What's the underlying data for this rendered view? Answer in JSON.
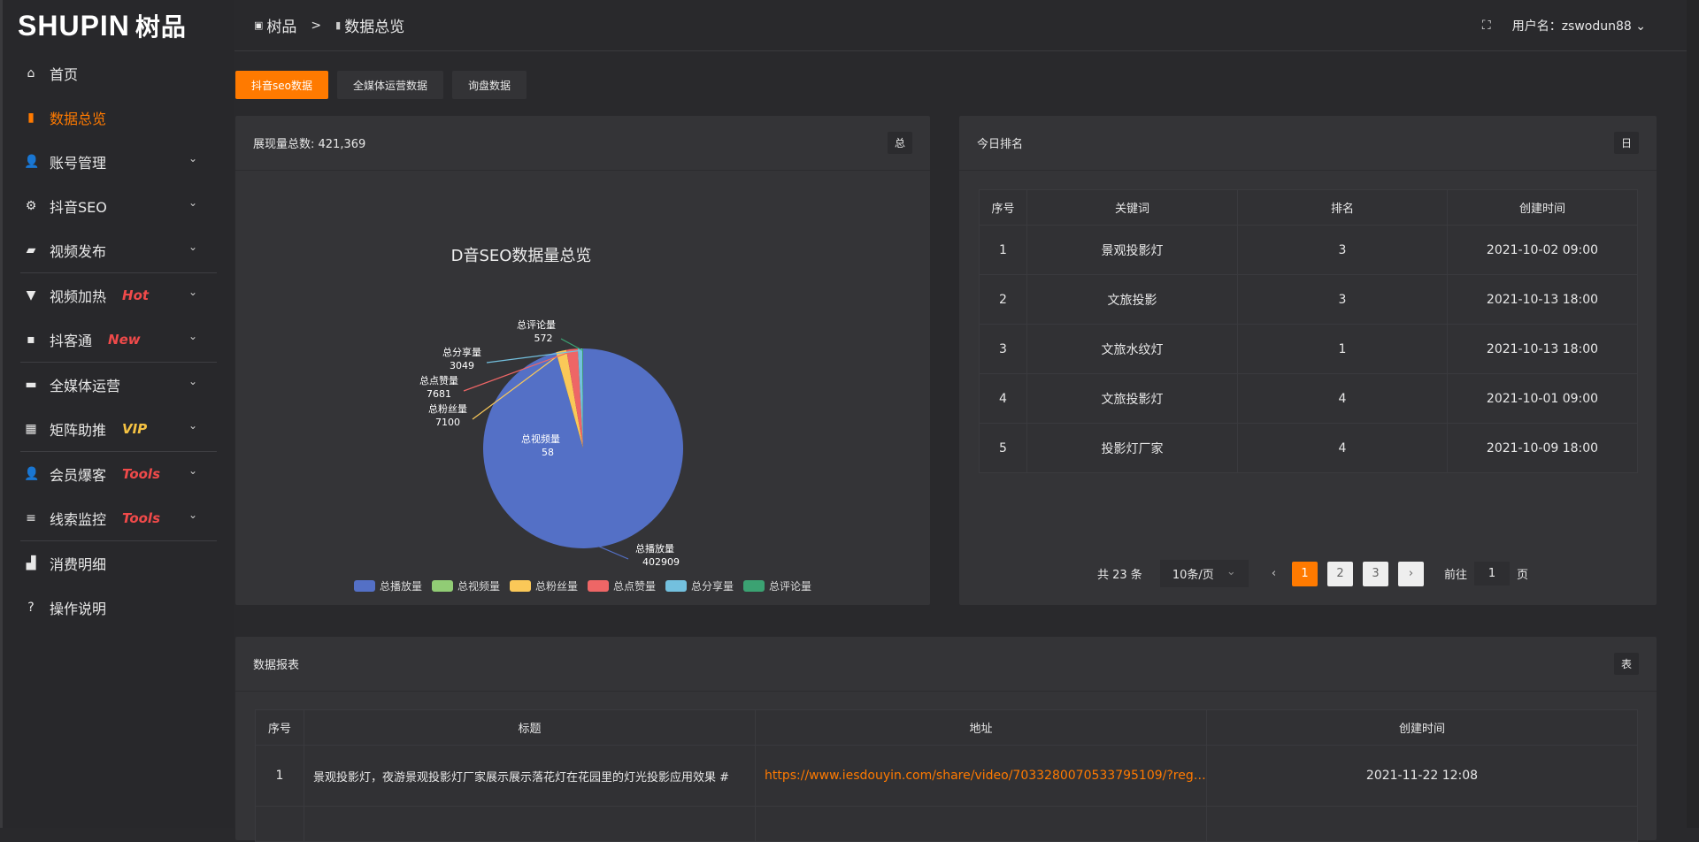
{
  "app": {
    "logo": "SHUPIN",
    "logo_cn": "树品"
  },
  "sidebar": {
    "items": [
      {
        "label": "首页",
        "icon": "home-icon",
        "glyph": "⌂"
      },
      {
        "label": "数据总览",
        "icon": "bar-chart-icon",
        "glyph": "▮",
        "active": true
      },
      {
        "label": "账号管理",
        "icon": "user-icon",
        "glyph": "👤",
        "chev": true
      },
      {
        "label": "抖音SEO",
        "icon": "gear-icon",
        "glyph": "⚙",
        "chev": true
      },
      {
        "label": "视频发布",
        "icon": "camera-icon",
        "glyph": "▰",
        "chev": true,
        "divider": true
      },
      {
        "label": "视频加热",
        "icon": "monitor-icon",
        "glyph": "▼",
        "chev": true,
        "tag": "Hot"
      },
      {
        "label": "抖客通",
        "icon": "chat-icon",
        "glyph": "▪",
        "chev": true,
        "tag": "New",
        "divider": true
      },
      {
        "label": "全媒体运营",
        "icon": "desktop-icon",
        "glyph": "▬",
        "chev": true
      },
      {
        "label": "矩阵助推",
        "icon": "grid-icon",
        "glyph": "▦",
        "chev": true,
        "tag": "VIP",
        "divider": true
      },
      {
        "label": "会员爆客",
        "icon": "user-icon",
        "glyph": "👤",
        "chev": true,
        "tag": "Tools"
      },
      {
        "label": "线索监控",
        "icon": "sliders-icon",
        "glyph": "≡",
        "chev": true,
        "tag": "Tools",
        "divider": true
      },
      {
        "label": "消费明细",
        "icon": "wallet-icon",
        "glyph": "▟"
      },
      {
        "label": "操作说明",
        "icon": "help-icon",
        "glyph": "?"
      }
    ]
  },
  "header": {
    "breadcrumb": [
      "树品",
      "数据总览"
    ],
    "user": "用户名：zswodun88"
  },
  "tabs": [
    "抖音seo数据",
    "全媒体运营数据",
    "询盘数据"
  ],
  "pie_card": {
    "title": "展现量总数: 421,369",
    "badge": "总"
  },
  "chart_data": {
    "type": "pie",
    "title": "D音SEO数据量总览",
    "slices": [
      {
        "name": "总播放量",
        "value": 402909,
        "color": "#5470c6"
      },
      {
        "name": "总视频量",
        "value": 58,
        "color": "#91cc75"
      },
      {
        "name": "总粉丝量",
        "value": 7100,
        "color": "#fac858"
      },
      {
        "name": "总点赞量",
        "value": 7681,
        "color": "#ee6666"
      },
      {
        "name": "总分享量",
        "value": 3049,
        "color": "#73c0de"
      },
      {
        "name": "总评论量",
        "value": 572,
        "color": "#3ba272"
      }
    ],
    "legend": "bottom"
  },
  "rank_card": {
    "title": "今日排名",
    "badge": "日",
    "columns": [
      "序号",
      "关键词",
      "排名",
      "创建时间"
    ],
    "rows": [
      [
        "1",
        "景观投影灯",
        "3",
        "2021-10-02 09:00"
      ],
      [
        "2",
        "文旅投影",
        "3",
        "2021-10-13 18:00"
      ],
      [
        "3",
        "文旅水纹灯",
        "1",
        "2021-10-13 18:00"
      ],
      [
        "4",
        "文旅投影灯",
        "4",
        "2021-10-01 09:00"
      ],
      [
        "5",
        "投影灯厂家",
        "4",
        "2021-10-09 18:00"
      ]
    ],
    "pagination": {
      "total": "共 23 条",
      "size": "10条/页",
      "pages": [
        "1",
        "2",
        "3"
      ],
      "current": "1",
      "goto": "前往",
      "goto_value": "1",
      "page_unit": "页"
    }
  },
  "report_card": {
    "title": "数据报表",
    "badge": "表",
    "columns": [
      "序号",
      "标题",
      "地址",
      "创建时间"
    ],
    "rows": [
      [
        "1",
        "景观投影灯，夜游景观投影灯厂家展示展示落花灯在花园里的灯光投影应用效果 #",
        "https://www.iesdouyin.com/share/video/7033280070533795109/?regio...",
        "2021-11-22 12:08"
      ]
    ]
  },
  "colors": {
    "accent": "#ff7a00",
    "tag_red": "#f04a4a",
    "tag_vip": "#f5c242"
  }
}
